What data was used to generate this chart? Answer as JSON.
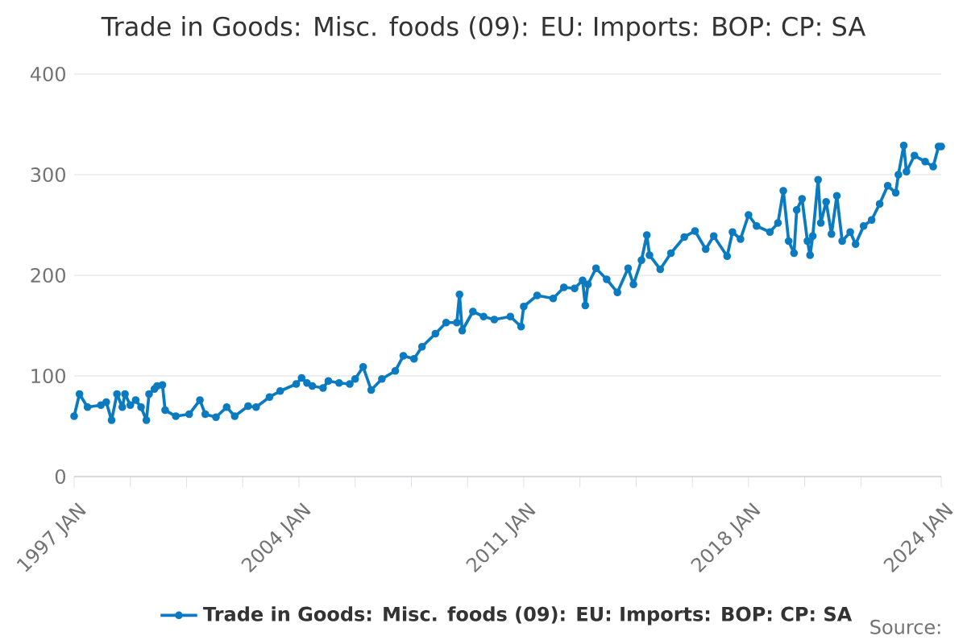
{
  "chart_data": {
    "type": "line",
    "title": "Trade in Goods: Misc. foods (09): EU: Imports: BOP: CP: SA",
    "series": [
      {
        "name": "Trade in Goods: Misc. foods (09): EU: Imports: BOP: CP: SA",
        "color": "#0b7bc1",
        "x": [
          "1997-01",
          "1997-03",
          "1997-06",
          "1997-11",
          "1998-01",
          "1998-03",
          "1998-05",
          "1998-07",
          "1998-08",
          "1998-10",
          "1998-12",
          "1999-02",
          "1999-04",
          "1999-05",
          "1999-07",
          "1999-08",
          "1999-10",
          "1999-11",
          "2000-03",
          "2000-08",
          "2000-12",
          "2001-02",
          "2001-06",
          "2001-10",
          "2002-01",
          "2002-06",
          "2002-09",
          "2003-02",
          "2003-06",
          "2003-12",
          "2004-02",
          "2004-04",
          "2004-06",
          "2004-10",
          "2004-12",
          "2005-04",
          "2005-08",
          "2005-10",
          "2006-01",
          "2006-04",
          "2006-08",
          "2007-01",
          "2007-04",
          "2007-08",
          "2007-11",
          "2008-04",
          "2008-08",
          "2008-12",
          "2009-01",
          "2009-02",
          "2009-06",
          "2009-10",
          "2010-02",
          "2010-08",
          "2010-12",
          "2011-01",
          "2011-06",
          "2011-12",
          "2012-04",
          "2012-08",
          "2012-11",
          "2012-12",
          "2013-01",
          "2013-04",
          "2013-08",
          "2013-12",
          "2014-04",
          "2014-06",
          "2014-09",
          "2014-11",
          "2014-12",
          "2015-04",
          "2015-08",
          "2016-01",
          "2016-05",
          "2016-09",
          "2016-12",
          "2017-05",
          "2017-07",
          "2017-10",
          "2018-01",
          "2018-04",
          "2018-09",
          "2018-12",
          "2019-02",
          "2019-04",
          "2019-06",
          "2019-07",
          "2019-09",
          "2019-11",
          "2019-12",
          "2020-01",
          "2020-03",
          "2020-04",
          "2020-06",
          "2020-08",
          "2020-10",
          "2020-12",
          "2021-03",
          "2021-05",
          "2021-08",
          "2021-11",
          "2022-02",
          "2022-05",
          "2022-08",
          "2022-09",
          "2022-11",
          "2022-12",
          "2023-03",
          "2023-07",
          "2023-10",
          "2023-12",
          "2024-01"
        ],
        "values": [
          60,
          82,
          69,
          71,
          74,
          56,
          82,
          69,
          82,
          71,
          76,
          69,
          56,
          82,
          87,
          90,
          91,
          66,
          60,
          62,
          76,
          62,
          59,
          69,
          60,
          70,
          69,
          79,
          85,
          92,
          98,
          93,
          90,
          88,
          95,
          93,
          92,
          97,
          109,
          86,
          97,
          105,
          120,
          117,
          129,
          142,
          153,
          153,
          181,
          145,
          164,
          159,
          156,
          159,
          149,
          169,
          180,
          177,
          188,
          187,
          195,
          170,
          191,
          207,
          196,
          183,
          207,
          191,
          215,
          240,
          220,
          206,
          222,
          238,
          244,
          226,
          239,
          219,
          243,
          236,
          260,
          249,
          243,
          252,
          284,
          234,
          222,
          265,
          276,
          234,
          220,
          239,
          295,
          252,
          273,
          241,
          279,
          234,
          243,
          231,
          249,
          255,
          271,
          289,
          282,
          300,
          329,
          303,
          319,
          313,
          308,
          328,
          328
        ]
      }
    ],
    "xlim": [
      "1997-01",
      "2024-01"
    ],
    "ylim": [
      0,
      400
    ],
    "xticks": [
      {
        "value": "1997-01",
        "label": "1997 JAN"
      },
      {
        "value": "1998-10",
        "label": null
      },
      {
        "value": "2000-07",
        "label": null
      },
      {
        "value": "2002-04",
        "label": null
      },
      {
        "value": "2004-01",
        "label": "2004 JAN"
      },
      {
        "value": "2005-10",
        "label": null
      },
      {
        "value": "2007-07",
        "label": null
      },
      {
        "value": "2009-04",
        "label": null
      },
      {
        "value": "2011-01",
        "label": "2011 JAN"
      },
      {
        "value": "2012-10",
        "label": null
      },
      {
        "value": "2014-07",
        "label": null
      },
      {
        "value": "2016-04",
        "label": null
      },
      {
        "value": "2018-01",
        "label": "2018 JAN"
      },
      {
        "value": "2019-10",
        "label": null
      },
      {
        "value": "2021-07",
        "label": null
      },
      {
        "value": "2024-01",
        "label": "2024 JAN"
      }
    ],
    "yticks": [
      0,
      100,
      200,
      300,
      400
    ],
    "grid": "y",
    "legend": "bottom",
    "marker": "circle",
    "line_style": "solid",
    "annotations": [
      "Source:"
    ]
  }
}
